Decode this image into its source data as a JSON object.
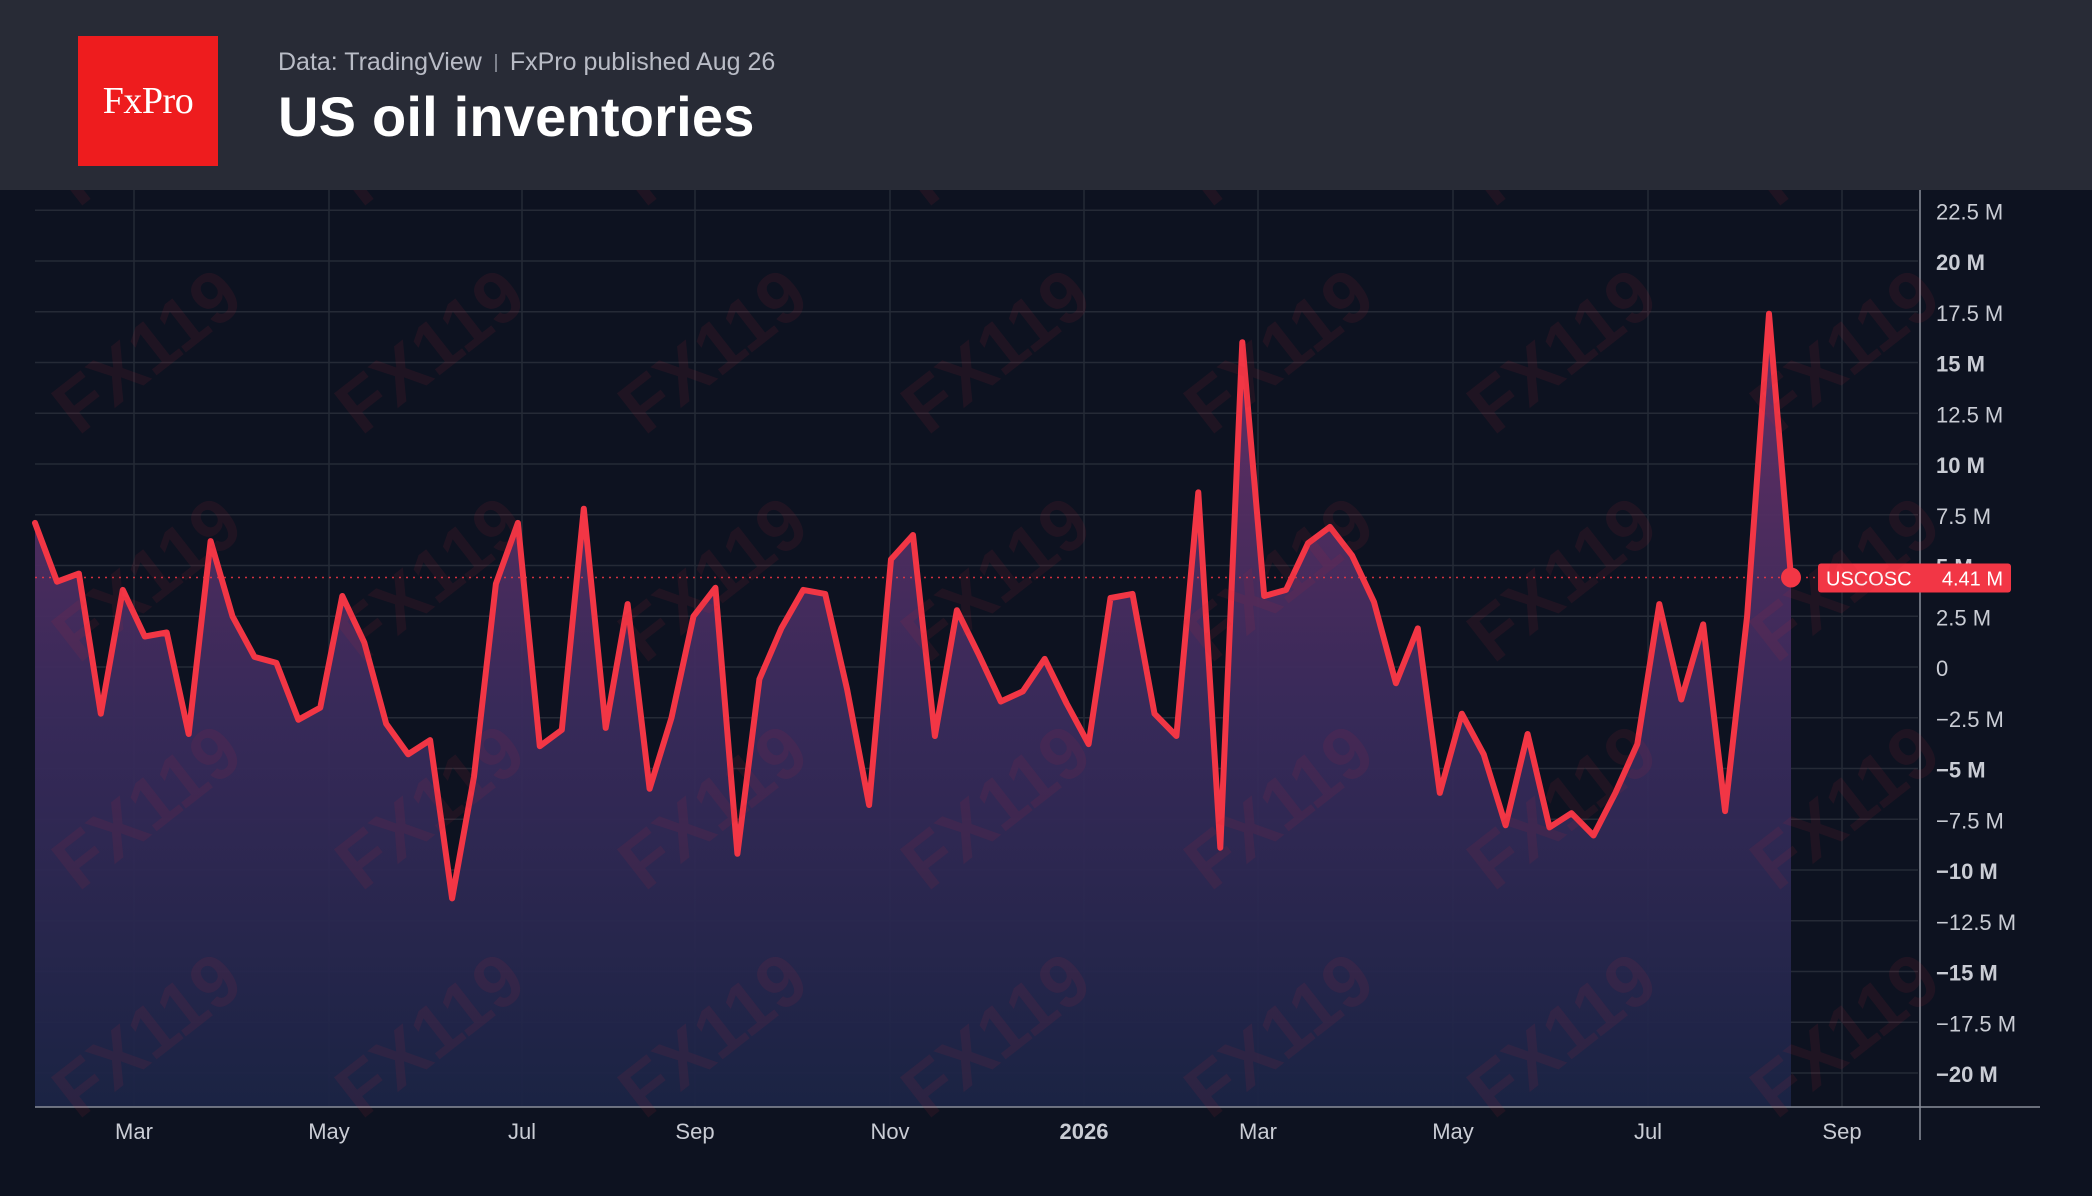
{
  "header": {
    "logo_text": "FxPro",
    "source": "Data: TradingView",
    "published": "FxPro published Aug 26",
    "title": "US oil inventories"
  },
  "watermark_text": "FX119",
  "colors": {
    "background": "#0d1220",
    "header_bg": "#282b36",
    "logo_red": "#ee1c1e",
    "line": "#f23645",
    "area_top": "#6a3067",
    "area_bottom": "#1b2445",
    "grid": "#252a36",
    "axis_text": "#c9ccd4"
  },
  "chart_data": {
    "type": "area",
    "ticker": "USCOSC",
    "last_value_label": "4.41 M",
    "x_tick_labels": [
      "Mar",
      "May",
      "Jul",
      "Sep",
      "Nov",
      "2026",
      "Mar",
      "May",
      "Jul",
      "Sep"
    ],
    "y_tick_labels": [
      "22.5 M",
      "20 M",
      "17.5 M",
      "15 M",
      "12.5 M",
      "10 M",
      "7.5 M",
      "5 M",
      "2.5 M",
      "0",
      "−2.5 M",
      "−5 M",
      "−7.5 M",
      "−10 M",
      "−12.5 M",
      "−15 M",
      "−17.5 M",
      "−20 M"
    ],
    "y_ticks": [
      22.5,
      20,
      17.5,
      15,
      12.5,
      10,
      7.5,
      5,
      2.5,
      0,
      -2.5,
      -5,
      -7.5,
      -10,
      -12.5,
      -15,
      -17.5,
      -20
    ],
    "ylim": [
      -21.6,
      23.5
    ],
    "grid": true,
    "series": [
      {
        "values": [
          7.1,
          4.2,
          4.6,
          -2.3,
          3.8,
          1.5,
          1.7,
          -3.3,
          6.2,
          2.5,
          0.5,
          0.2,
          -2.6,
          -2.0,
          3.5,
          1.2,
          -2.8,
          -4.3,
          -3.6,
          -11.4,
          -5.4,
          4.1,
          7.1,
          -3.9,
          -3.1,
          7.8,
          -3.0,
          3.1,
          -6.0,
          -2.5,
          2.5,
          3.9,
          -9.2,
          -0.6,
          1.9,
          3.8,
          3.6,
          -1.1,
          -6.8,
          5.3,
          6.5,
          -3.4,
          2.8,
          0.6,
          -1.7,
          -1.2,
          0.4,
          -1.8,
          -3.8,
          3.4,
          3.6,
          -2.3,
          -3.4,
          8.6,
          -8.9,
          16.0,
          3.5,
          3.8,
          6.1,
          6.9,
          5.5,
          3.2,
          -0.8,
          1.9,
          -6.2,
          -2.3,
          -4.3,
          -7.8,
          -3.3,
          -7.9,
          -7.2,
          -8.3,
          -6.2,
          -3.8,
          3.1,
          -1.6,
          2.1,
          -7.1,
          2.5,
          17.4,
          4.41
        ]
      }
    ]
  }
}
